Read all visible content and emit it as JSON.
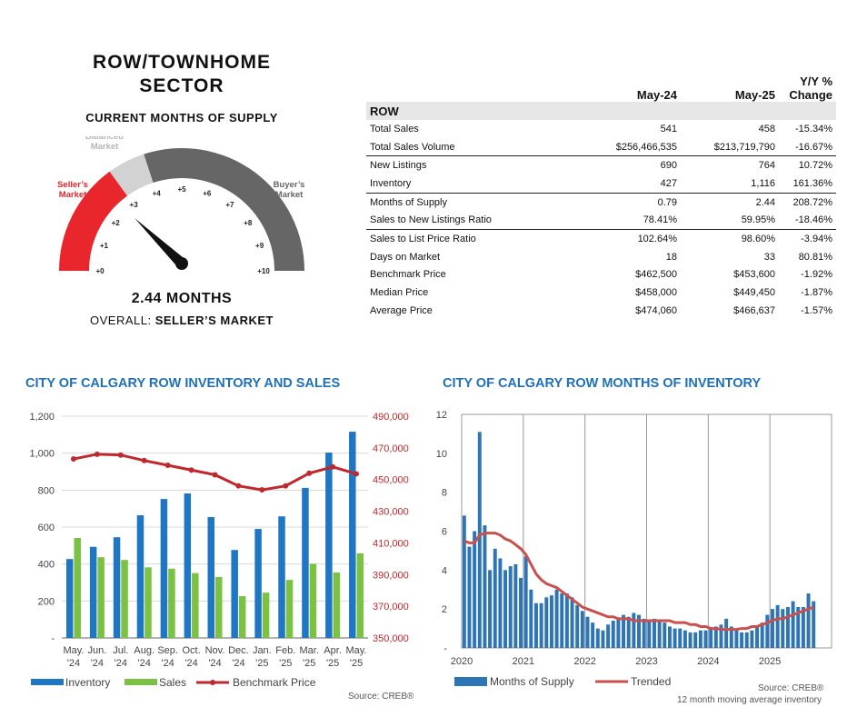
{
  "sector": {
    "title_line1": "ROW/TOWNHOME",
    "title_line2": "SECTOR",
    "supply_label": "CURRENT MONTHS OF SUPPLY",
    "months_text": "2.44 MONTHS",
    "overall_prefix": "OVERALL: ",
    "overall_value": "SELLER’S MARKET"
  },
  "gauge": {
    "value": 2.44,
    "min": 0,
    "max": 10,
    "ticks": [
      "+0",
      "+1",
      "+2",
      "+3",
      "+4",
      "+5",
      "+6",
      "+7",
      "+8",
      "+9",
      "+10"
    ],
    "zones": [
      {
        "label_lines": [
          "Seller’s",
          "Market"
        ],
        "from": 0,
        "to": 3,
        "color": "#e8262b",
        "label_color": "#e8262b"
      },
      {
        "label_lines": [
          "Balanced",
          "Market"
        ],
        "from": 3,
        "to": 4,
        "color": "#d2d2d2",
        "label_color": "#b5b5b5"
      },
      {
        "label_lines": [
          "Buyer’s",
          "Market"
        ],
        "from": 4,
        "to": 10,
        "color": "#666666",
        "label_color": "#666666"
      }
    ]
  },
  "table": {
    "headers": [
      "May-24",
      "May-25",
      "Y/Y %",
      "Change"
    ],
    "section": "ROW",
    "rows": [
      {
        "label": "Total Sales",
        "a": "541",
        "b": "458",
        "c": "-15.34%"
      },
      {
        "label": "Total Sales Volume",
        "a": "$256,466,535",
        "b": "$213,719,790",
        "c": "-16.67%"
      },
      {
        "label": "New Listings",
        "a": "690",
        "b": "764",
        "c": "10.72%"
      },
      {
        "label": "Inventory",
        "a": "427",
        "b": "1,116",
        "c": "161.36%"
      },
      {
        "label": "Months of Supply",
        "a": "0.79",
        "b": "2.44",
        "c": "208.72%"
      },
      {
        "label": "Sales to New Listings Ratio",
        "a": "78.41%",
        "b": "59.95%",
        "c": "-18.46%"
      },
      {
        "label": "Sales to List Price Ratio",
        "a": "102.64%",
        "b": "98.60%",
        "c": "-3.94%"
      },
      {
        "label": "Days on Market",
        "a": "18",
        "b": "33",
        "c": "80.81%"
      },
      {
        "label": "Benchmark Price",
        "a": "$462,500",
        "b": "$453,600",
        "c": "-1.92%"
      },
      {
        "label": "Median Price",
        "a": "$458,000",
        "b": "$449,450",
        "c": "-1.87%"
      },
      {
        "label": "Average Price",
        "a": "$474,060",
        "b": "$466,637",
        "c": "-1.57%"
      }
    ],
    "separators_after": [
      1,
      3,
      5
    ]
  },
  "chart_data": [
    {
      "type": "bar",
      "title": "CITY OF CALGARY ROW INVENTORY AND SALES",
      "categories": [
        [
          "May.",
          "'24"
        ],
        [
          "Jun.",
          "'24"
        ],
        [
          "Jul.",
          "'24"
        ],
        [
          "Aug.",
          "'24"
        ],
        [
          "Sep.",
          "'24"
        ],
        [
          "Oct.",
          "'24"
        ],
        [
          "Nov.",
          "'24"
        ],
        [
          "Dec.",
          "'24"
        ],
        [
          "Jan.",
          "'25"
        ],
        [
          "Feb.",
          "'25"
        ],
        [
          "Mar.",
          "'25"
        ],
        [
          "Apr.",
          "'25"
        ],
        [
          "May.",
          "'25"
        ]
      ],
      "series": [
        {
          "name": "Inventory",
          "type": "bar",
          "axis": "left",
          "color": "#1f77c4",
          "values": [
            427,
            493,
            545,
            664,
            752,
            782,
            654,
            476,
            590,
            658,
            812,
            1003,
            1116
          ]
        },
        {
          "name": "Sales",
          "type": "bar",
          "axis": "left",
          "color": "#7bc143",
          "values": [
            541,
            437,
            422,
            382,
            375,
            351,
            330,
            226,
            245,
            314,
            401,
            354,
            458
          ]
        },
        {
          "name": "Benchmark Price",
          "type": "line",
          "axis": "right",
          "color": "#c0282d",
          "values": [
            463000,
            466000,
            465500,
            462000,
            459000,
            456000,
            453000,
            446000,
            443500,
            446000,
            454000,
            458000,
            453600
          ]
        }
      ],
      "left_axis": {
        "min": 0,
        "max": 1200,
        "ticks": [
          "-",
          "200",
          "400",
          "600",
          "800",
          "1,000",
          "1,200"
        ]
      },
      "right_axis": {
        "min": 350000,
        "max": 490000,
        "ticks": [
          "350,000",
          "370,000",
          "390,000",
          "410,000",
          "430,000",
          "450,000",
          "470,000",
          "490,000"
        ]
      },
      "legend": [
        "Inventory",
        "Sales",
        "Benchmark Price"
      ],
      "legend_position": "bottom",
      "source": "Source: CREB®"
    },
    {
      "type": "bar",
      "title": "CITY OF CALGARY ROW MONTHS OF INVENTORY",
      "x_start": "2020-01",
      "year_labels": [
        "2020",
        "2021",
        "2022",
        "2023",
        "2024",
        "2025"
      ],
      "y_axis": {
        "min": 0,
        "max": 12,
        "ticks": [
          "-",
          "2",
          "4",
          "6",
          "8",
          "10",
          "12"
        ]
      },
      "series": [
        {
          "name": "Months of Supply",
          "type": "bar",
          "color": "#2e75b6",
          "values": [
            6.8,
            5.2,
            6.0,
            11.1,
            6.3,
            4.0,
            5.1,
            4.6,
            4.0,
            4.2,
            4.3,
            3.6,
            4.7,
            3.0,
            2.3,
            2.3,
            2.6,
            2.7,
            3.0,
            2.8,
            2.8,
            2.6,
            2.2,
            1.9,
            1.6,
            1.3,
            1.0,
            0.9,
            1.2,
            1.4,
            1.5,
            1.7,
            1.6,
            1.8,
            1.7,
            1.5,
            1.4,
            1.5,
            1.4,
            1.3,
            1.1,
            1.0,
            1.0,
            0.9,
            0.8,
            0.8,
            0.9,
            0.9,
            1.0,
            1.1,
            1.2,
            1.5,
            1.1,
            0.9,
            0.8,
            0.8,
            0.9,
            1.1,
            1.3,
            1.7,
            2.0,
            2.2,
            2.0,
            2.1,
            2.4,
            2.1,
            2.1,
            2.8,
            2.4
          ]
        },
        {
          "name": "Trended",
          "type": "line",
          "color": "#c9504d",
          "values": [
            5.5,
            5.4,
            5.4,
            5.8,
            5.9,
            5.9,
            5.9,
            5.8,
            5.6,
            5.5,
            5.3,
            5.1,
            4.8,
            4.3,
            3.8,
            3.5,
            3.3,
            3.2,
            3.1,
            2.9,
            2.7,
            2.5,
            2.3,
            2.1,
            2.0,
            1.9,
            1.8,
            1.7,
            1.6,
            1.6,
            1.5,
            1.5,
            1.5,
            1.4,
            1.4,
            1.4,
            1.4,
            1.4,
            1.4,
            1.4,
            1.4,
            1.3,
            1.3,
            1.3,
            1.2,
            1.2,
            1.1,
            1.1,
            1.0,
            1.0,
            0.95,
            0.95,
            0.95,
            0.95,
            1.0,
            1.0,
            1.1,
            1.1,
            1.2,
            1.3,
            1.4,
            1.5,
            1.5,
            1.6,
            1.7,
            1.8,
            1.9,
            2.0,
            2.1
          ]
        }
      ],
      "legend": [
        "Months of Supply",
        "Trended"
      ],
      "legend_position": "bottom",
      "source_line1": "Source: CREB®",
      "source_line2": "12 month moving average inventory"
    }
  ]
}
